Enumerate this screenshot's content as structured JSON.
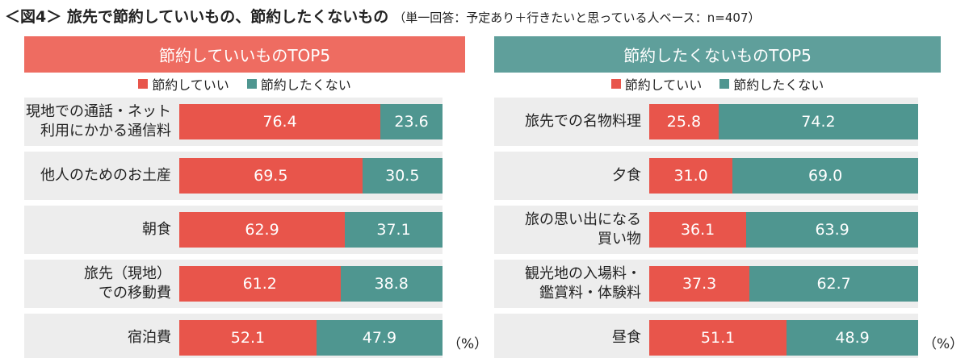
{
  "title": "＜図4＞ 旅先で節約していいもの、節約したくないもの",
  "note": "（単一回答：予定あり＋行きたいと思っている人ベース：n=407）",
  "chart_data": [
    {
      "type": "bar",
      "orientation": "horizontal",
      "stacked": true,
      "title": "節約していいものTOP5",
      "header_color": "#ee6c61",
      "categories": [
        "現地での通話・ネット\n利用にかかる通信料",
        "他人のためのお土産",
        "朝食",
        "旅先（現地）\nでの移動費",
        "宿泊費"
      ],
      "series": [
        {
          "name": "節約していい",
          "color": "#e8554b",
          "values": [
            76.4,
            69.5,
            62.9,
            61.2,
            52.1
          ],
          "value_labels": [
            "76.4",
            "69.5",
            "62.9",
            "61.2",
            "52.1"
          ]
        },
        {
          "name": "節約したくない",
          "color": "#4f9690",
          "values": [
            23.6,
            30.5,
            37.1,
            38.8,
            47.9
          ],
          "value_labels": [
            "23.6",
            "30.5",
            "37.1",
            "38.8",
            "47.9"
          ]
        }
      ],
      "xlim": [
        0,
        100
      ],
      "unit": "（%）"
    },
    {
      "type": "bar",
      "orientation": "horizontal",
      "stacked": true,
      "title": "節約したくないものTOP5",
      "header_color": "#5f9f9b",
      "categories": [
        "旅先での名物料理",
        "夕食",
        "旅の思い出になる\n買い物",
        "観光地の入場料・\n鑑賞料・体験料",
        "昼食"
      ],
      "series": [
        {
          "name": "節約していい",
          "color": "#e8554b",
          "values": [
            25.8,
            31.0,
            36.1,
            37.3,
            51.1
          ],
          "value_labels": [
            "25.8",
            "31.0",
            "36.1",
            "37.3",
            "51.1"
          ]
        },
        {
          "name": "節約したくない",
          "color": "#4f9690",
          "values": [
            74.2,
            69.0,
            63.9,
            62.7,
            48.9
          ],
          "value_labels": [
            "74.2",
            "69.0",
            "63.9",
            "62.7",
            "48.9"
          ]
        }
      ],
      "xlim": [
        0,
        100
      ],
      "unit": "（%）"
    }
  ]
}
